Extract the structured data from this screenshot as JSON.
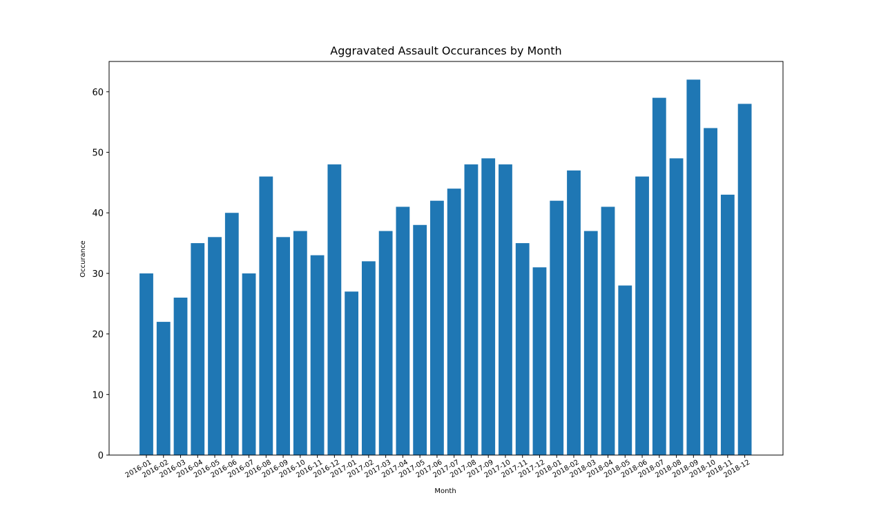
{
  "chart_data": {
    "type": "bar",
    "title": "Aggravated Assault Occurances by Month",
    "xlabel": "Month",
    "ylabel": "Occurance",
    "ylim": [
      0,
      65
    ],
    "yticks": [
      0,
      10,
      20,
      30,
      40,
      50,
      60
    ],
    "grid": false,
    "bar_color": "#1f77b4",
    "categories": [
      "2016-01",
      "2016-02",
      "2016-03",
      "2016-04",
      "2016-05",
      "2016-06",
      "2016-07",
      "2016-08",
      "2016-09",
      "2016-10",
      "2016-11",
      "2016-12",
      "2017-01",
      "2017-02",
      "2017-03",
      "2017-04",
      "2017-05",
      "2017-06",
      "2017-07",
      "2017-08",
      "2017-09",
      "2017-10",
      "2017-11",
      "2017-12",
      "2018-01",
      "2018-02",
      "2018-03",
      "2018-04",
      "2018-05",
      "2018-06",
      "2018-07",
      "2018-08",
      "2018-09",
      "2018-10",
      "2018-11",
      "2018-12"
    ],
    "values": [
      30,
      22,
      26,
      35,
      36,
      40,
      30,
      46,
      36,
      37,
      33,
      48,
      27,
      32,
      37,
      41,
      38,
      42,
      44,
      48,
      49,
      48,
      35,
      31,
      42,
      47,
      37,
      41,
      28,
      46,
      59,
      49,
      62,
      54,
      43,
      58
    ]
  }
}
